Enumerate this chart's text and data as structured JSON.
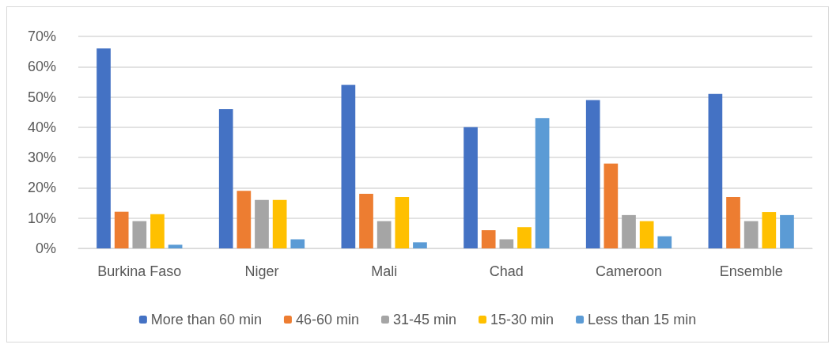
{
  "chart_data": {
    "type": "bar",
    "categories": [
      "Burkina Faso",
      "Niger",
      "Mali",
      "Chad",
      "Cameroon",
      "Ensemble"
    ],
    "series": [
      {
        "name": "More than 60 min",
        "color": "#4472c4",
        "values": [
          66,
          46,
          54,
          40,
          49,
          51
        ]
      },
      {
        "name": "46-60 min",
        "color": "#ed7d31",
        "values": [
          12.1,
          19,
          18,
          6,
          28,
          17
        ]
      },
      {
        "name": "31-45 min",
        "color": "#a5a5a5",
        "values": [
          9,
          16,
          9,
          3,
          11,
          9
        ]
      },
      {
        "name": "15-30 min",
        "color": "#ffc000",
        "values": [
          11.3,
          16,
          17,
          7,
          9,
          12
        ]
      },
      {
        "name": "Less than 15 min",
        "color": "#5b9bd5",
        "values": [
          1.2,
          3,
          2,
          43,
          4,
          11
        ]
      }
    ],
    "ylim": [
      0,
      70
    ],
    "yticks": [
      {
        "value": 0,
        "label": "0%"
      },
      {
        "value": 10,
        "label": "10%"
      },
      {
        "value": 20,
        "label": "20%"
      },
      {
        "value": 30,
        "label": "30%"
      },
      {
        "value": 40,
        "label": "40%"
      },
      {
        "value": 50,
        "label": "50%"
      },
      {
        "value": 60,
        "label": "60%"
      },
      {
        "value": 70,
        "label": "70%"
      }
    ],
    "grid": "y",
    "legend": "bottom"
  }
}
